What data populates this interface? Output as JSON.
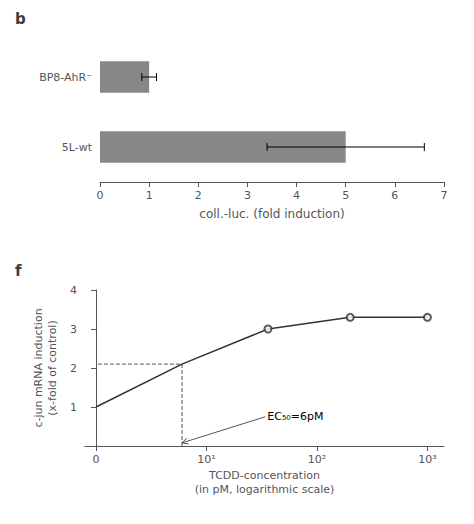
{
  "chart_data": [
    {
      "type": "bar",
      "title": "b",
      "orientation": "horizontal",
      "categories": [
        "BP8-AhR⁻",
        "5L-wt"
      ],
      "values": [
        1.0,
        5.0
      ],
      "errors": [
        0.15,
        1.6
      ],
      "xlabel": "coll.-luc. (fold induction)",
      "xlim": [
        0,
        7
      ],
      "xticks": [
        0,
        1,
        2,
        3,
        4,
        5,
        6,
        7
      ],
      "color": "#888888",
      "grid": false
    },
    {
      "type": "line",
      "title": "f",
      "xlabel": "TCDD-concentration\n(in pM, logarithmic scale)",
      "ylabel": "c-jun mRNA induction\n(x-fold of control)",
      "xlim": [
        -0.1,
        3.15
      ],
      "xticks": [
        0,
        {
          "value": 1,
          "label": "10¹"
        },
        {
          "value": 2,
          "label": "10²"
        },
        {
          "value": 3,
          "label": "10³"
        }
      ],
      "ylim": [
        0,
        4
      ],
      "yticks": [
        1,
        2,
        3,
        4
      ],
      "grid": false,
      "series": [
        {
          "type": "line",
          "color": "#333333",
          "marker": "none",
          "x": [
            0,
            0.7781512503836436,
            1.5563025007672873,
            2.3010299956639813,
            3
          ],
          "values": [
            1.0,
            2.1,
            3.0,
            3.3,
            3.3
          ]
        },
        {
          "type": "scatter",
          "color": "#333333",
          "marker": "emptyCircle",
          "x": [
            1.5563025007672873,
            2.3010299956639813,
            3
          ],
          "values": [
            3.0,
            3.3,
            3.3
          ]
        }
      ],
      "ec50": {
        "x": 0.7781512503836436,
        "y": 2.1,
        "color": "#555555",
        "line_style": "dashed"
      },
      "annotations": [
        {
          "text": "EC₅₀=6pM",
          "x": 1.55,
          "y": 0.75,
          "xy": [
            0.7781512503836436,
            0.08
          ],
          "color": "#555555"
        }
      ]
    }
  ]
}
